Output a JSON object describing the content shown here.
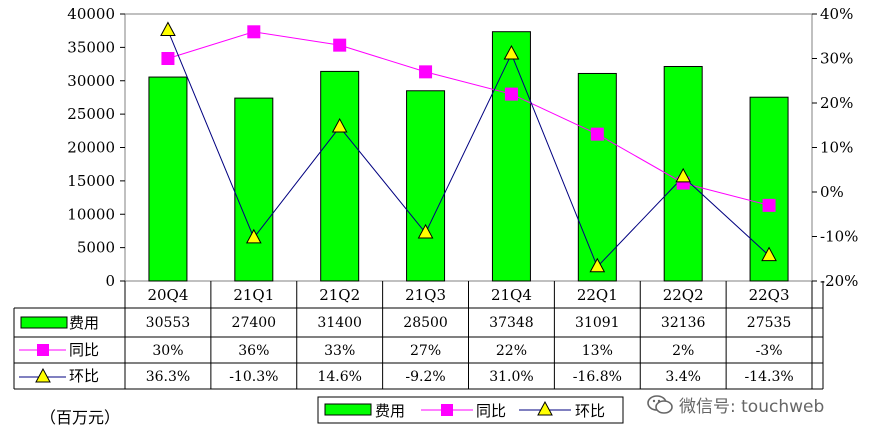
{
  "unit_label": "（百万元）",
  "watermark": "微信号: touchweb",
  "chart_data": {
    "type": "bar",
    "categories": [
      "20Q4",
      "21Q1",
      "21Q2",
      "21Q3",
      "21Q4",
      "22Q1",
      "22Q2",
      "22Q3"
    ],
    "ylim": [
      0,
      40000
    ],
    "y_ticks": [
      "40000",
      "35000",
      "30000",
      "25000",
      "20000",
      "15000",
      "10000",
      "5000",
      "0"
    ],
    "y2lim": [
      -20,
      40
    ],
    "y2_ticks": [
      "40%",
      "30%",
      "20%",
      "10%",
      "0%",
      "-10%",
      "-20%"
    ],
    "series": [
      {
        "name": "费用",
        "kind": "bar",
        "axis": "left",
        "color": "#00ff00",
        "values": [
          30553,
          27400,
          31400,
          28500,
          37348,
          31091,
          32136,
          27535
        ],
        "labels": [
          "30553",
          "27400",
          "31400",
          "28500",
          "37348",
          "31091",
          "32136",
          "27535"
        ]
      },
      {
        "name": "同比",
        "kind": "line",
        "axis": "right",
        "color": "#ff00ff",
        "marker": "square",
        "values": [
          30,
          36,
          33,
          27,
          22,
          13,
          2,
          -3
        ],
        "labels": [
          "30%",
          "36%",
          "33%",
          "27%",
          "22%",
          "13%",
          "2%",
          "-3%"
        ]
      },
      {
        "name": "环比",
        "kind": "line",
        "axis": "right",
        "color": "#000080",
        "marker": "triangle",
        "values": [
          36.3,
          -10.3,
          14.6,
          -9.2,
          31.0,
          -16.8,
          3.4,
          -14.3
        ],
        "labels": [
          "36.3%",
          "-10.3%",
          "14.6%",
          "-9.2%",
          "31.0%",
          "-16.8%",
          "3.4%",
          "-14.3%"
        ]
      }
    ],
    "legend_position": "bottom",
    "grid": false
  }
}
